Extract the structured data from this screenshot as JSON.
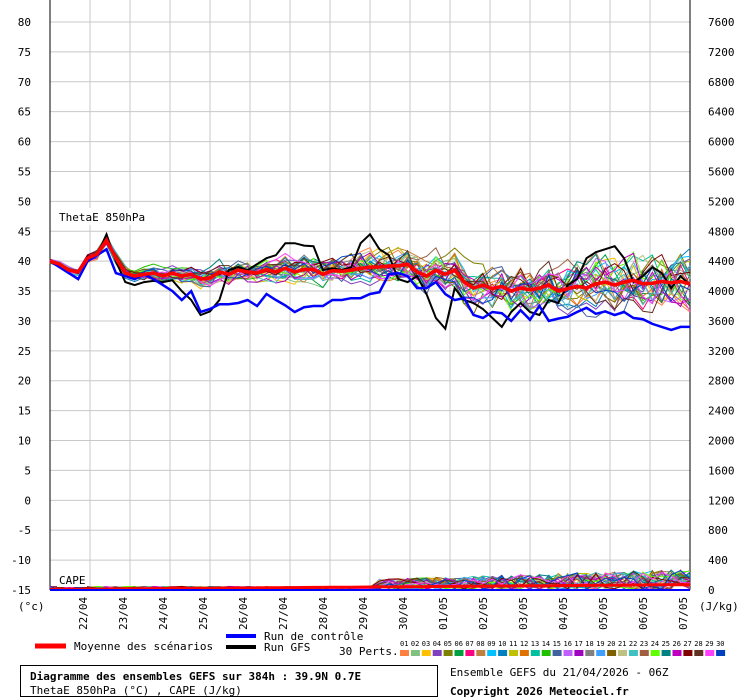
{
  "chart_data": {
    "type": "line",
    "top_label": "ThetaE 850hPa",
    "cape_label": "CAPE",
    "left_unit": "(°c)",
    "right_unit": "(J/kg)",
    "left_axis": {
      "min": -15,
      "max": 80,
      "step": 5,
      "ticks": [
        80,
        75,
        70,
        65,
        60,
        55,
        50,
        45,
        40,
        35,
        30,
        25,
        20,
        15,
        10,
        5,
        0,
        -5,
        -10,
        -15
      ]
    },
    "right_axis": {
      "ticks": [
        7600,
        7200,
        6800,
        6400,
        6000,
        5600,
        5200,
        4800,
        4400,
        4000,
        3600,
        3200,
        2800,
        2400,
        2000,
        1600,
        1200,
        800,
        400,
        0
      ]
    },
    "x_labels": [
      "22/04",
      "23/04",
      "24/04",
      "25/04",
      "26/04",
      "27/04",
      "28/04",
      "29/04",
      "30/04",
      "01/05",
      "02/05",
      "03/05",
      "04/05",
      "05/05",
      "06/05",
      "07/05"
    ],
    "grid": true,
    "series": {
      "mean": {
        "name": "Moyenne des scénarios",
        "color": "#ff0000",
        "values": [
          40,
          39.5,
          38.5,
          38.2,
          40.5,
          41.2,
          43.5,
          40.5,
          38,
          37.5,
          37.8,
          38,
          37.5,
          38,
          37.5,
          37.8,
          37,
          37.2,
          38.2,
          37.8,
          38.5,
          38.2,
          38,
          38.6,
          38.2,
          38.8,
          38.2,
          38.6,
          38.6,
          37.8,
          38.4,
          38.3,
          38.5,
          38.8,
          39,
          39,
          39.2,
          39.2,
          39.5,
          38.2,
          37.5,
          38.5,
          37.8,
          38.5,
          36.5,
          35.5,
          36,
          35.4,
          35.8,
          35,
          35.5,
          35.2,
          35.5,
          36,
          35,
          35.4,
          35.8,
          35.5,
          36.2,
          36.5,
          36,
          36.5,
          36.8,
          36.2,
          36.3,
          36.6,
          36.4,
          36.6,
          36.2
        ]
      },
      "control": {
        "name": "Run de contrôle",
        "color": "#0000ff",
        "values": [
          40,
          39,
          38,
          37,
          40,
          41,
          42,
          38,
          37.5,
          37,
          37.8,
          37,
          36,
          35,
          33.5,
          35,
          31.5,
          32,
          32.8,
          32.8,
          33,
          33.5,
          32.5,
          34.5,
          33.5,
          32.6,
          31.5,
          32.3,
          32.5,
          32.5,
          33.5,
          33.5,
          33.8,
          33.8,
          34.5,
          34.8,
          37.8,
          38,
          37.5,
          35.5,
          35.5,
          36.5,
          34.5,
          33.5,
          33.8,
          31,
          30.5,
          31.5,
          31.3,
          30,
          31.8,
          30.2,
          32.5,
          30,
          30.4,
          30.7,
          31.5,
          32.2,
          31.2,
          31.6,
          31,
          31.5,
          30.5,
          30.3,
          29.5,
          29,
          28.5,
          29,
          29
        ]
      },
      "gfs": {
        "name": "Run GFS",
        "color": "#000000",
        "values": [
          40,
          39,
          38.5,
          38,
          40.8,
          41,
          44.5,
          40,
          36.5,
          36,
          36.5,
          36.7,
          36.5,
          36.8,
          35,
          33.5,
          31,
          31.6,
          33.5,
          38.5,
          39,
          38.5,
          39.5,
          40.5,
          41,
          43,
          43,
          42.6,
          42.5,
          38.5,
          38.8,
          38.5,
          39,
          43,
          44.5,
          42,
          41,
          37,
          36.5,
          37.5,
          34.5,
          30.5,
          28.7,
          35.5,
          33.5,
          33,
          32,
          30.5,
          29,
          31.5,
          33,
          31.5,
          31,
          33.5,
          33,
          36,
          37,
          40.5,
          41.5,
          42,
          42.5,
          40.5,
          36.5,
          37.5,
          39,
          38,
          35.5,
          37.5,
          36
        ]
      },
      "perturbation_count_label": "30 Perts.",
      "perturbation_ids": [
        "01",
        "02",
        "03",
        "04",
        "05",
        "06",
        "07",
        "08",
        "09",
        "10",
        "11",
        "12",
        "13",
        "14",
        "15",
        "16",
        "17",
        "18",
        "19",
        "20",
        "21",
        "22",
        "23",
        "24",
        "25",
        "26",
        "27",
        "28",
        "29",
        "30"
      ],
      "perturbation_colors": [
        "#ff8040",
        "#80c080",
        "#ffc000",
        "#8040c0",
        "#808000",
        "#00a040",
        "#ff0080",
        "#c08040",
        "#00c0ff",
        "#0080c0",
        "#c0c000",
        "#e07000",
        "#00c0a0",
        "#20c000",
        "#4060a0",
        "#c060ff",
        "#a000c0",
        "#808080",
        "#40a0ff",
        "#806000",
        "#c0c080",
        "#40c0c0",
        "#a06040",
        "#60ff00",
        "#008080",
        "#c000c0",
        "#800000",
        "#603020",
        "#ff40ff",
        "#0040c0"
      ]
    }
  },
  "legend": {
    "mean_label": "Moyenne des scénarios",
    "control_label": "Run de contrôle",
    "gfs_label": "Run GFS",
    "perts_label": "30 Perts."
  },
  "footer": {
    "title": "Diagramme des ensembles GEFS sur 384h : 39.9N 0.7E",
    "subtitle": "ThetaE 850hPa (°C) , CAPE (J/kg)",
    "ensemble_info": "Ensemble GEFS du 21/04/2026 - 06Z",
    "copyright": "Copyright 2026 Meteociel.fr"
  }
}
